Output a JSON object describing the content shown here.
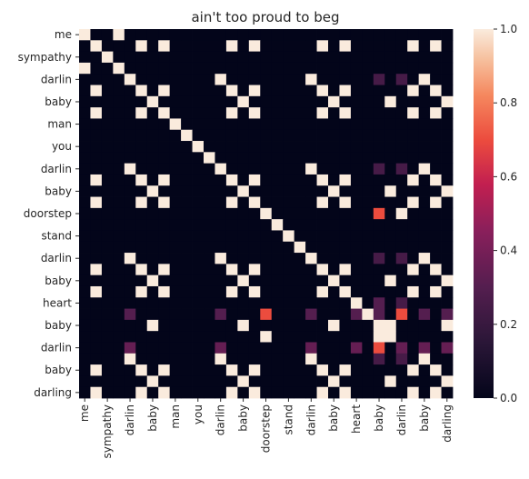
{
  "chart_data": {
    "type": "heatmap",
    "title": "ain't too proud to beg",
    "xlabel": "",
    "ylabel": "",
    "tokens": [
      "me",
      "",
      "sympathy",
      "",
      "darlin",
      "",
      "baby",
      "",
      "man",
      "",
      "you",
      "",
      "darlin",
      "",
      "baby",
      "",
      "doorstep",
      "",
      "stand",
      "",
      "darlin",
      "",
      "baby",
      "",
      "heart",
      "",
      "baby",
      "",
      "darlin",
      "",
      "baby",
      "",
      "darling"
    ],
    "x_tick_labels": [
      "me",
      "sympathy",
      "darlin",
      "baby",
      "man",
      "you",
      "darlin",
      "baby",
      "doorstep",
      "stand",
      "darlin",
      "baby",
      "heart",
      "baby",
      "darlin",
      "baby",
      "darling"
    ],
    "y_tick_labels": [
      "me",
      "sympathy",
      "darlin",
      "baby",
      "man",
      "you",
      "darlin",
      "baby",
      "doorstep",
      "stand",
      "darlin",
      "baby",
      "heart",
      "baby",
      "darlin",
      "baby",
      "darling"
    ],
    "colorbar": {
      "min": 0.0,
      "max": 1.0,
      "ticks": [
        "0.0",
        "0.2",
        "0.4",
        "0.6",
        "0.8",
        "1.0"
      ],
      "colormap": "rocket"
    },
    "matrix": [
      [
        1,
        0,
        0,
        1,
        0,
        0,
        0,
        0,
        0,
        0,
        0,
        0,
        0,
        0,
        0,
        0,
        0,
        0,
        0,
        0,
        0,
        0,
        0,
        0,
        0,
        0,
        0,
        0,
        0,
        0,
        0,
        0,
        0
      ],
      [
        0,
        1,
        0,
        0,
        0,
        1,
        0,
        1,
        0,
        0,
        0,
        0,
        0,
        1,
        0,
        1,
        0,
        0,
        0,
        0,
        0,
        1,
        0,
        1,
        0,
        0,
        0,
        0,
        0,
        1,
        0,
        1,
        0
      ],
      [
        0,
        0,
        1,
        0,
        0,
        0,
        0,
        0,
        0,
        0,
        0,
        0,
        0,
        0,
        0,
        0,
        0,
        0,
        0,
        0,
        0,
        0,
        0,
        0,
        0,
        0,
        0,
        0,
        0,
        0,
        0,
        0,
        0
      ],
      [
        1,
        0,
        0,
        1,
        0,
        0,
        0,
        0,
        0,
        0,
        0,
        0,
        0,
        0,
        0,
        0,
        0,
        0,
        0,
        0,
        0,
        0,
        0,
        0,
        0,
        0,
        0,
        0,
        0,
        0,
        0,
        0,
        0
      ],
      [
        0,
        0,
        0,
        0,
        1,
        0,
        0,
        0,
        0,
        0,
        0,
        0,
        1,
        0,
        0,
        0,
        0,
        0,
        0,
        0,
        1,
        0,
        0,
        0,
        0,
        0,
        0.25,
        0,
        0.25,
        0,
        1,
        0,
        0
      ],
      [
        0,
        1,
        0,
        0,
        0,
        1,
        0,
        1,
        0,
        0,
        0,
        0,
        0,
        1,
        0,
        1,
        0,
        0,
        0,
        0,
        0,
        1,
        0,
        1,
        0,
        0,
        0,
        0,
        0,
        1,
        0,
        1,
        0
      ],
      [
        0,
        0,
        0,
        0,
        0,
        0,
        1,
        0,
        0,
        0,
        0,
        0,
        0,
        0,
        1,
        0,
        0,
        0,
        0,
        0,
        0,
        0,
        1,
        0,
        0,
        0,
        0,
        1,
        0,
        0,
        0,
        0,
        1
      ],
      [
        0,
        1,
        0,
        0,
        0,
        1,
        0,
        1,
        0,
        0,
        0,
        0,
        0,
        1,
        0,
        1,
        0,
        0,
        0,
        0,
        0,
        1,
        0,
        1,
        0,
        0,
        0,
        0,
        0,
        1,
        0,
        1,
        0
      ],
      [
        0,
        0,
        0,
        0,
        0,
        0,
        0,
        0,
        1,
        0,
        0,
        0,
        0,
        0,
        0,
        0,
        0,
        0,
        0,
        0,
        0,
        0,
        0,
        0,
        0,
        0,
        0,
        0,
        0,
        0,
        0,
        0,
        0
      ],
      [
        0,
        0,
        0,
        0,
        0,
        0,
        0,
        0,
        0,
        1,
        0,
        0,
        0,
        0,
        0,
        0,
        0,
        0,
        0,
        0,
        0,
        0,
        0,
        0,
        0,
        0,
        0,
        0,
        0,
        0,
        0,
        0,
        0
      ],
      [
        0,
        0,
        0,
        0,
        0,
        0,
        0,
        0,
        0,
        0,
        1,
        0,
        0,
        0,
        0,
        0,
        0,
        0,
        0,
        0,
        0,
        0,
        0,
        0,
        0,
        0,
        0,
        0,
        0,
        0,
        0,
        0,
        0
      ],
      [
        0,
        0,
        0,
        0,
        0,
        0,
        0,
        0,
        0,
        0,
        0,
        1,
        0,
        0,
        0,
        0,
        0,
        0,
        0,
        0,
        0,
        0,
        0,
        0,
        0,
        0,
        0,
        0,
        0,
        0,
        0,
        0,
        0
      ],
      [
        0,
        0,
        0,
        0,
        1,
        0,
        0,
        0,
        0,
        0,
        0,
        0,
        1,
        0,
        0,
        0,
        0,
        0,
        0,
        0,
        1,
        0,
        0,
        0,
        0,
        0,
        0.25,
        0,
        0.25,
        0,
        1,
        0,
        0
      ],
      [
        0,
        1,
        0,
        0,
        0,
        1,
        0,
        1,
        0,
        0,
        0,
        0,
        0,
        1,
        0,
        1,
        0,
        0,
        0,
        0,
        0,
        1,
        0,
        1,
        0,
        0,
        0,
        0,
        0,
        1,
        0,
        1,
        0
      ],
      [
        0,
        0,
        0,
        0,
        0,
        0,
        1,
        0,
        0,
        0,
        0,
        0,
        0,
        0,
        1,
        0,
        0,
        0,
        0,
        0,
        0,
        0,
        1,
        0,
        0,
        0,
        0,
        1,
        0,
        0,
        0,
        0,
        1
      ],
      [
        0,
        1,
        0,
        0,
        0,
        1,
        0,
        1,
        0,
        0,
        0,
        0,
        0,
        1,
        0,
        1,
        0,
        0,
        0,
        0,
        0,
        1,
        0,
        1,
        0,
        0,
        0,
        0,
        0,
        1,
        0,
        1,
        0
      ],
      [
        0,
        0,
        0,
        0,
        0,
        0,
        0,
        0,
        0,
        0,
        0,
        0,
        0,
        0,
        0,
        0,
        1,
        0,
        0,
        0,
        0,
        0,
        0,
        0,
        0,
        0,
        0.7,
        0,
        1,
        0,
        0,
        0,
        0
      ],
      [
        0,
        0,
        0,
        0,
        0,
        0,
        0,
        0,
        0,
        0,
        0,
        0,
        0,
        0,
        0,
        0,
        0,
        1,
        0,
        0,
        0,
        0,
        0,
        0,
        0,
        0,
        0,
        0,
        0,
        0,
        0,
        0,
        0
      ],
      [
        0,
        0,
        0,
        0,
        0,
        0,
        0,
        0,
        0,
        0,
        0,
        0,
        0,
        0,
        0,
        0,
        0,
        0,
        1,
        0,
        0,
        0,
        0,
        0,
        0,
        0,
        0,
        0,
        0,
        0,
        0,
        0,
        0
      ],
      [
        0,
        0,
        0,
        0,
        0,
        0,
        0,
        0,
        0,
        0,
        0,
        0,
        0,
        0,
        0,
        0,
        0,
        0,
        0,
        1,
        0,
        0,
        0,
        0,
        0,
        0,
        0,
        0,
        0,
        0,
        0,
        0,
        0
      ],
      [
        0,
        0,
        0,
        0,
        1,
        0,
        0,
        0,
        0,
        0,
        0,
        0,
        1,
        0,
        0,
        0,
        0,
        0,
        0,
        0,
        1,
        0,
        0,
        0,
        0,
        0,
        0.25,
        0,
        0.25,
        0,
        1,
        0,
        0
      ],
      [
        0,
        1,
        0,
        0,
        0,
        1,
        0,
        1,
        0,
        0,
        0,
        0,
        0,
        1,
        0,
        1,
        0,
        0,
        0,
        0,
        0,
        1,
        0,
        1,
        0,
        0,
        0,
        0,
        0,
        1,
        0,
        1,
        0
      ],
      [
        0,
        0,
        0,
        0,
        0,
        0,
        1,
        0,
        0,
        0,
        0,
        0,
        0,
        0,
        1,
        0,
        0,
        0,
        0,
        0,
        0,
        0,
        1,
        0,
        0,
        0,
        0,
        1,
        0,
        0,
        0,
        0,
        1
      ],
      [
        0,
        1,
        0,
        0,
        0,
        1,
        0,
        1,
        0,
        0,
        0,
        0,
        0,
        1,
        0,
        1,
        0,
        0,
        0,
        0,
        0,
        1,
        0,
        1,
        0,
        0,
        0,
        0,
        0,
        1,
        0,
        1,
        0
      ],
      [
        0,
        0,
        0,
        0,
        0,
        0,
        0,
        0,
        0,
        0,
        0,
        0,
        0,
        0,
        0,
        0,
        0,
        0,
        0,
        0,
        0,
        0,
        0,
        0,
        1,
        0,
        0.3,
        0,
        0.25,
        0,
        0,
        0,
        0
      ],
      [
        0,
        0,
        0,
        0,
        0.3,
        0,
        0,
        0,
        0,
        0,
        0,
        0,
        0.3,
        0,
        0,
        0,
        0.7,
        0,
        0,
        0,
        0.3,
        0,
        0,
        0,
        0.3,
        1,
        0.3,
        0,
        0.7,
        0,
        0.3,
        0,
        0.3
      ],
      [
        0,
        0,
        0,
        0,
        0,
        0,
        1,
        0,
        0,
        0,
        0,
        0,
        0,
        0,
        1,
        0,
        0,
        0,
        0,
        0,
        0,
        0,
        1,
        0,
        0,
        0,
        1,
        1,
        0,
        0,
        0,
        0,
        1
      ],
      [
        0,
        0,
        0,
        0,
        0,
        0,
        0,
        0,
        0,
        0,
        0,
        0,
        0,
        0,
        0,
        0,
        1,
        0,
        0,
        0,
        0,
        0,
        0,
        0,
        0,
        0,
        1,
        1,
        0,
        0,
        0,
        0,
        0
      ],
      [
        0,
        0,
        0,
        0,
        0.35,
        0,
        0,
        0,
        0,
        0,
        0,
        0,
        0.35,
        0,
        0,
        0,
        0,
        0,
        0,
        0,
        0.35,
        0,
        0,
        0,
        0.35,
        0,
        0.7,
        0,
        0.35,
        0,
        0.35,
        0,
        0.35
      ],
      [
        0,
        0,
        0,
        0,
        1,
        0,
        0,
        0,
        0,
        0,
        0,
        0,
        1,
        0,
        0,
        0,
        0,
        0,
        0,
        0,
        1,
        0,
        0,
        0,
        0,
        0,
        0.25,
        0,
        0.25,
        0,
        1,
        0,
        0
      ],
      [
        0,
        1,
        0,
        0,
        0,
        1,
        0,
        1,
        0,
        0,
        0,
        0,
        0,
        1,
        0,
        1,
        0,
        0,
        0,
        0,
        0,
        1,
        0,
        1,
        0,
        0,
        0,
        0,
        0,
        1,
        0,
        1,
        0
      ],
      [
        0,
        0,
        0,
        0,
        0,
        0,
        1,
        0,
        0,
        0,
        0,
        0,
        0,
        0,
        1,
        0,
        0,
        0,
        0,
        0,
        0,
        0,
        1,
        0,
        0,
        0,
        0,
        1,
        0,
        0,
        0,
        0,
        1
      ],
      [
        0,
        1,
        0,
        0,
        0,
        1,
        0,
        1,
        0,
        0,
        0,
        0,
        0,
        1,
        0,
        1,
        0,
        0,
        0,
        0,
        0,
        1,
        0,
        1,
        0,
        0,
        0,
        0,
        0,
        1,
        0,
        1,
        0
      ]
    ]
  }
}
